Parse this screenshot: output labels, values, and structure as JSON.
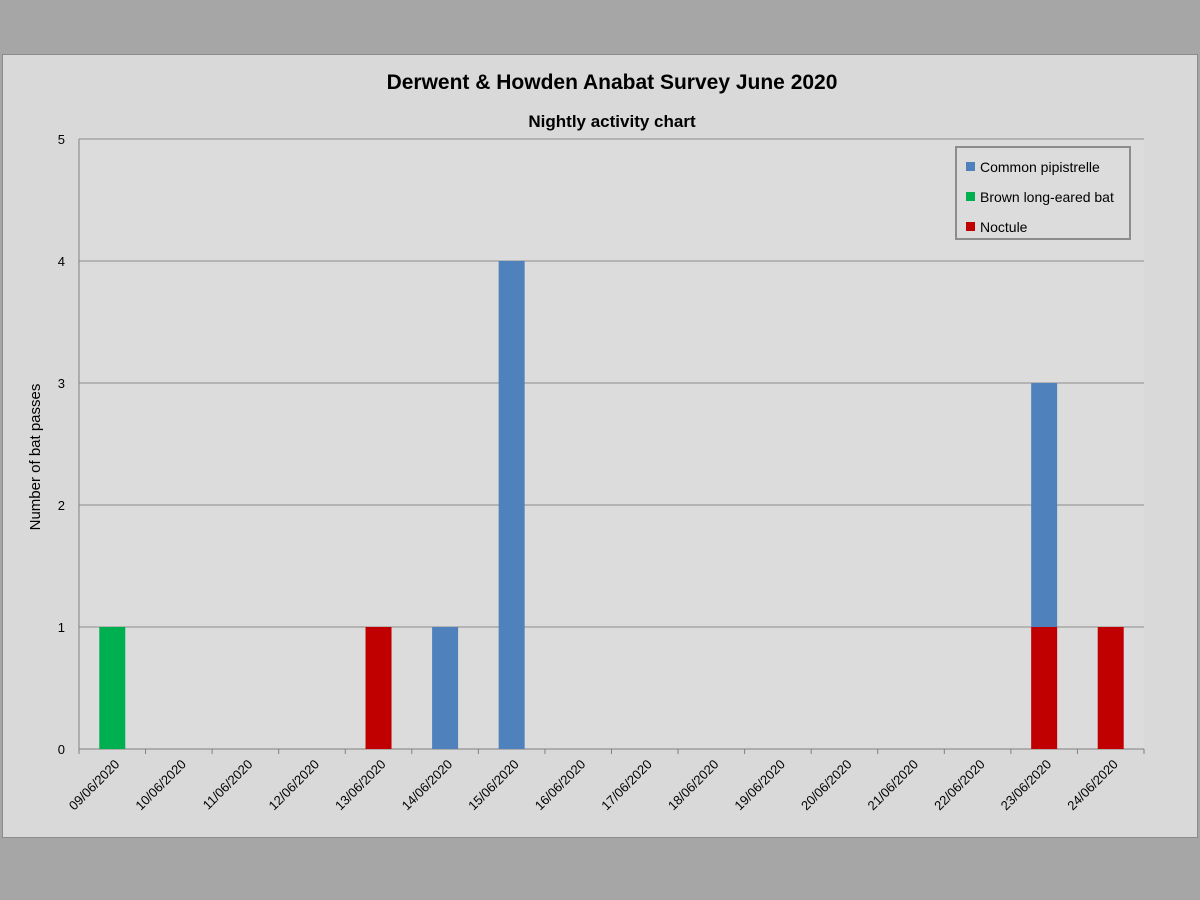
{
  "chart_data": {
    "type": "bar",
    "stacked": true,
    "title": "Derwent & Howden Anabat Survey June 2020",
    "subtitle": "Nightly activity chart",
    "xlabel": "",
    "ylabel": "Number of bat passes",
    "ylim": [
      0,
      5
    ],
    "yticks": [
      "0",
      "1",
      "2",
      "3",
      "4",
      "5"
    ],
    "grid": true,
    "legend_position": "top-right",
    "categories": [
      "09/06/2020",
      "10/06/2020",
      "11/06/2020",
      "12/06/2020",
      "13/06/2020",
      "14/06/2020",
      "15/06/2020",
      "16/06/2020",
      "17/06/2020",
      "18/06/2020",
      "19/06/2020",
      "20/06/2020",
      "21/06/2020",
      "22/06/2020",
      "23/06/2020",
      "24/06/2020"
    ],
    "series": [
      {
        "name": "Noctule",
        "color": "#c00000",
        "values": [
          0,
          0,
          0,
          0,
          1,
          0,
          0,
          0,
          0,
          0,
          0,
          0,
          0,
          0,
          1,
          1
        ]
      },
      {
        "name": "Brown long-eared bat",
        "color": "#00b050",
        "values": [
          1,
          0,
          0,
          0,
          0,
          0,
          0,
          0,
          0,
          0,
          0,
          0,
          0,
          0,
          0,
          0
        ]
      },
      {
        "name": "Common pipistrelle",
        "color": "#4f81bd",
        "values": [
          0,
          0,
          0,
          0,
          0,
          1,
          4,
          0,
          0,
          0,
          0,
          0,
          0,
          0,
          2,
          0
        ]
      }
    ],
    "legend": [
      "Common pipistrelle",
      "Brown long-eared bat",
      "Noctule"
    ]
  }
}
